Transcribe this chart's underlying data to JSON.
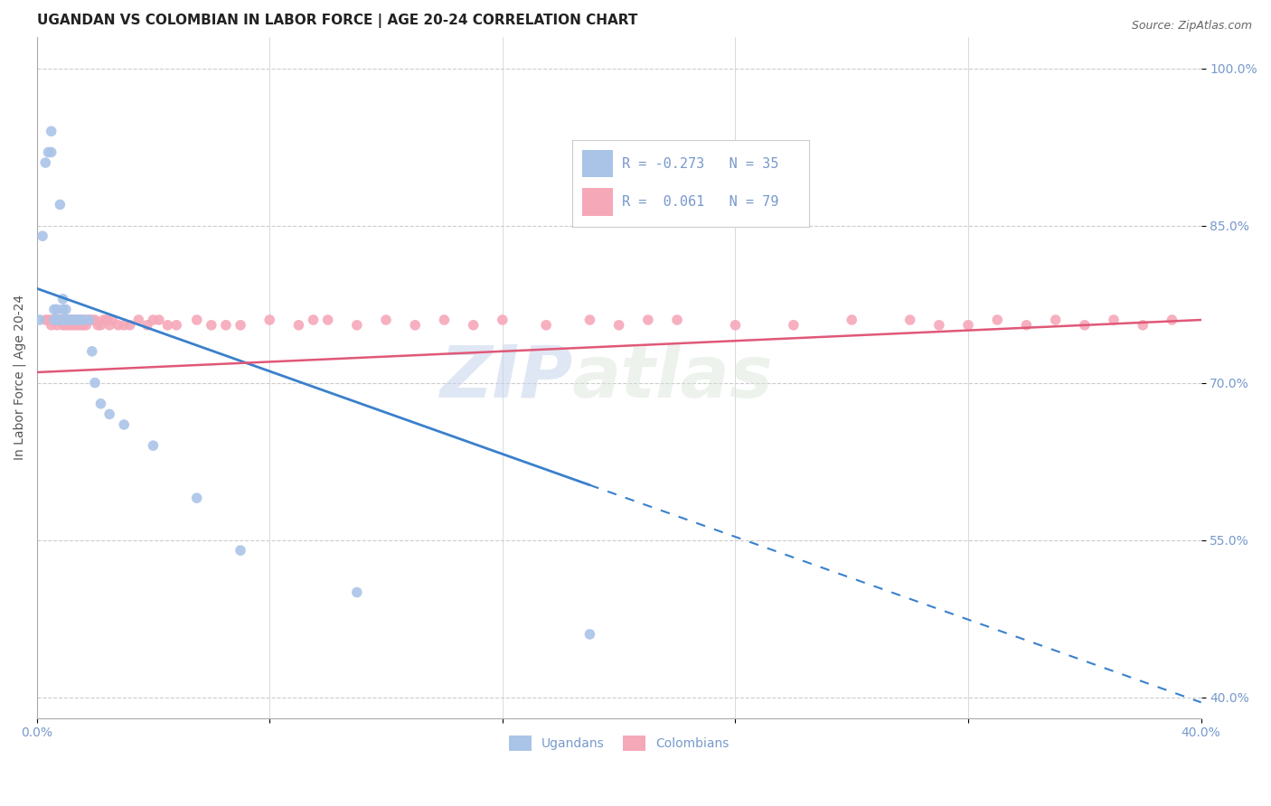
{
  "title": "UGANDAN VS COLOMBIAN IN LABOR FORCE | AGE 20-24 CORRELATION CHART",
  "source": "Source: ZipAtlas.com",
  "ylabel": "In Labor Force | Age 20-24",
  "watermark_zip": "ZIP",
  "watermark_atlas": "atlas",
  "xmin": 0.0,
  "xmax": 0.4,
  "ymin": 0.38,
  "ymax": 1.03,
  "xtick_positions": [
    0.0,
    0.08,
    0.16,
    0.24,
    0.32,
    0.4
  ],
  "xticklabels": [
    "0.0%",
    "",
    "",
    "",
    "",
    "40.0%"
  ],
  "ytick_positions": [
    0.4,
    0.55,
    0.7,
    0.85,
    1.0
  ],
  "yticklabels_right": [
    "40.0%",
    "55.0%",
    "70.0%",
    "85.0%",
    "100.0%"
  ],
  "ugandan_color": "#aac4e8",
  "colombian_color": "#f5a8b8",
  "ugandan_line_color": "#3a80cc",
  "colombian_line_color": "#e05878",
  "legend_ugandan_R": "-0.273",
  "legend_ugandan_N": "35",
  "legend_colombian_R": "0.061",
  "legend_colombian_N": "79",
  "ugandan_x": [
    0.001,
    0.002,
    0.003,
    0.004,
    0.005,
    0.005,
    0.006,
    0.006,
    0.007,
    0.007,
    0.008,
    0.008,
    0.009,
    0.009,
    0.009,
    0.01,
    0.01,
    0.011,
    0.011,
    0.012,
    0.013,
    0.014,
    0.015,
    0.016,
    0.018,
    0.019,
    0.02,
    0.022,
    0.025,
    0.03,
    0.04,
    0.055,
    0.07,
    0.11,
    0.19
  ],
  "ugandan_y": [
    0.76,
    0.84,
    0.91,
    0.92,
    0.94,
    0.92,
    0.76,
    0.77,
    0.76,
    0.77,
    0.76,
    0.87,
    0.76,
    0.78,
    0.77,
    0.76,
    0.77,
    0.76,
    0.76,
    0.76,
    0.76,
    0.76,
    0.76,
    0.76,
    0.76,
    0.73,
    0.7,
    0.68,
    0.67,
    0.66,
    0.64,
    0.59,
    0.54,
    0.5,
    0.46
  ],
  "colombian_x": [
    0.003,
    0.004,
    0.005,
    0.005,
    0.006,
    0.006,
    0.007,
    0.007,
    0.008,
    0.008,
    0.009,
    0.009,
    0.01,
    0.01,
    0.01,
    0.011,
    0.011,
    0.012,
    0.012,
    0.013,
    0.013,
    0.014,
    0.014,
    0.015,
    0.015,
    0.016,
    0.016,
    0.017,
    0.017,
    0.018,
    0.019,
    0.02,
    0.021,
    0.022,
    0.023,
    0.024,
    0.025,
    0.026,
    0.028,
    0.03,
    0.032,
    0.035,
    0.038,
    0.04,
    0.042,
    0.045,
    0.048,
    0.055,
    0.06,
    0.065,
    0.07,
    0.08,
    0.09,
    0.095,
    0.1,
    0.11,
    0.12,
    0.13,
    0.14,
    0.15,
    0.16,
    0.175,
    0.19,
    0.2,
    0.21,
    0.22,
    0.24,
    0.26,
    0.28,
    0.3,
    0.31,
    0.32,
    0.33,
    0.34,
    0.35,
    0.36,
    0.37,
    0.38,
    0.39
  ],
  "colombian_y": [
    0.76,
    0.76,
    0.76,
    0.755,
    0.76,
    0.76,
    0.76,
    0.755,
    0.76,
    0.76,
    0.76,
    0.755,
    0.76,
    0.755,
    0.76,
    0.76,
    0.755,
    0.76,
    0.755,
    0.76,
    0.755,
    0.76,
    0.755,
    0.76,
    0.755,
    0.76,
    0.755,
    0.76,
    0.755,
    0.76,
    0.76,
    0.76,
    0.755,
    0.755,
    0.76,
    0.76,
    0.755,
    0.76,
    0.755,
    0.755,
    0.755,
    0.76,
    0.755,
    0.76,
    0.76,
    0.755,
    0.755,
    0.76,
    0.755,
    0.755,
    0.755,
    0.76,
    0.755,
    0.76,
    0.76,
    0.755,
    0.76,
    0.755,
    0.76,
    0.755,
    0.76,
    0.755,
    0.76,
    0.755,
    0.76,
    0.76,
    0.755,
    0.755,
    0.76,
    0.76,
    0.755,
    0.755,
    0.76,
    0.755,
    0.76,
    0.755,
    0.76,
    0.755,
    0.76
  ],
  "background_color": "#ffffff",
  "grid_color": "#cccccc",
  "axis_label_color": "#7799cc",
  "title_color": "#222222",
  "title_fontsize": 11,
  "label_fontsize": 10,
  "tick_fontsize": 10
}
